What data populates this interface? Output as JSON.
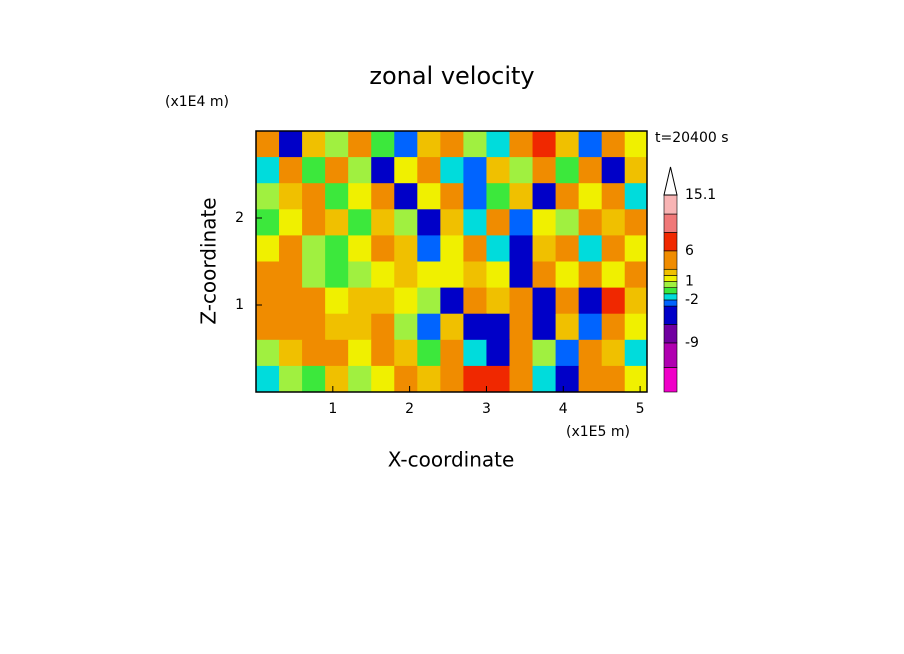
{
  "chart_data": {
    "type": "contour",
    "title": "zonal velocity",
    "x_label": "X-coordinate",
    "y_label": "Z-coordinate",
    "x_unit": "(x1E5 m)",
    "y_unit": "(x1E4 m)",
    "annotation": "t=20400 s",
    "xlim": [
      0,
      5.09
    ],
    "ylim": [
      0,
      3
    ],
    "xticks": [
      1,
      2,
      3,
      4,
      5
    ],
    "yticks": [
      1,
      2
    ],
    "x": [
      0.15,
      0.45,
      0.75,
      1.05,
      1.35,
      1.65,
      1.95,
      2.25,
      2.55,
      2.85,
      3.15,
      3.45,
      3.75,
      4.05,
      4.35,
      4.65,
      4.95
    ],
    "y": [
      2.85,
      2.55,
      2.25,
      1.95,
      1.65,
      1.35,
      1.05,
      0.75,
      0.45,
      0.15
    ],
    "z": [
      [
        4,
        -4,
        2,
        0,
        5,
        -1,
        -3,
        2,
        4,
        0,
        -2,
        3,
        6,
        2,
        -3,
        4,
        1
      ],
      [
        -2,
        3,
        -1,
        4,
        0,
        -4,
        1,
        3,
        -2,
        -3,
        2,
        0,
        4,
        -1,
        3,
        -4,
        2
      ],
      [
        0,
        2,
        3,
        -1,
        1,
        3,
        -5,
        1,
        3,
        -3,
        -1,
        2,
        -4,
        3,
        1,
        4,
        -2
      ],
      [
        -1,
        1,
        4,
        2,
        -1,
        2,
        0,
        -6,
        2,
        -2,
        3,
        -3,
        1,
        0,
        5,
        2,
        3
      ],
      [
        1,
        3,
        0,
        -1,
        1,
        3,
        2,
        -3,
        1,
        3,
        -2,
        -5,
        2,
        4,
        -2,
        3,
        1
      ],
      [
        3,
        3,
        0,
        -1,
        0,
        1,
        2,
        1,
        1,
        2,
        1,
        -4,
        4,
        1,
        3,
        1,
        4
      ],
      [
        4,
        4,
        3,
        1,
        2,
        2,
        1,
        0,
        -5,
        4,
        2,
        5,
        -5,
        3,
        -5,
        6,
        2
      ],
      [
        3,
        4,
        3,
        2,
        2,
        3,
        0,
        -3,
        2,
        -5,
        -6,
        3,
        -5,
        2,
        -3,
        3,
        1
      ],
      [
        0,
        2,
        3,
        3,
        1,
        4,
        2,
        -1,
        3,
        -2,
        -4,
        5,
        0,
        -3,
        4,
        2,
        -2
      ],
      [
        -2,
        0,
        -1,
        2,
        0,
        1,
        3,
        2,
        4,
        7,
        6,
        3,
        -2,
        -4,
        5,
        3,
        1
      ]
    ],
    "colorbar": {
      "levels": [
        -17,
        -13,
        -9,
        -6,
        -3,
        -2,
        -1,
        0,
        1,
        2,
        3,
        6,
        9,
        12,
        15.1
      ],
      "colors": [
        "#f000c8",
        "#b000b0",
        "#7000a0",
        "#0000c8",
        "#0064ff",
        "#00dcdc",
        "#3ce83c",
        "#a0f040",
        "#f0f000",
        "#f0c000",
        "#f08c00",
        "#f02800",
        "#f07878",
        "#f8b4b4"
      ],
      "over_color": "#ffffff",
      "ticks": [
        15.1,
        6,
        1,
        -2,
        -9
      ]
    }
  }
}
